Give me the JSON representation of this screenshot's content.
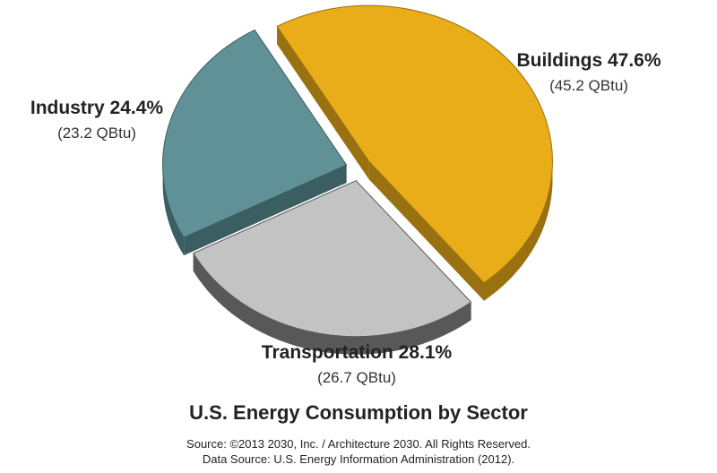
{
  "chart_data": {
    "type": "pie",
    "title": "U.S. Energy Consumption by Sector",
    "source_lines": [
      "Source: ©2013 2030, Inc. / Architecture 2030. All Rights Reserved.",
      "Data Source: U.S. Energy Information Administration (2012)."
    ],
    "slices": [
      {
        "name": "Buildings",
        "percent": 47.6,
        "percent_label": "47.6%",
        "value_label": "(45.2 QBtu)",
        "value": 45.2,
        "color": "#E9AD1A",
        "side_color": "#9A7110"
      },
      {
        "name": "Transportation",
        "percent": 28.1,
        "percent_label": "28.1%",
        "value_label": "(26.7 QBtu)",
        "value": 26.7,
        "color": "#C3C3C3",
        "side_color": "#585858"
      },
      {
        "name": "Industry",
        "percent": 24.4,
        "percent_label": "24.4%",
        "value_label": "(23.2 QBtu)",
        "value": 23.2,
        "color": "#5F9196",
        "side_color": "#3B5E62"
      }
    ],
    "exploded": true,
    "style": "3d"
  }
}
